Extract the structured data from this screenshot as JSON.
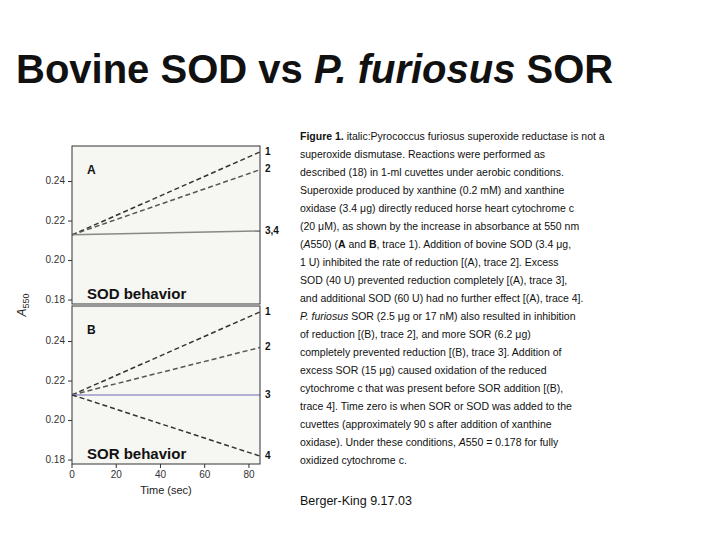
{
  "title": [
    {
      "text": "Bovine SOD vs ",
      "style": "normal"
    },
    {
      "text": "P. furiosus",
      "style": "italic"
    },
    {
      "text": " SOR",
      "style": "normal"
    }
  ],
  "chart_data": [
    {
      "type": "line",
      "x": [
        0,
        85
      ],
      "xlim": [
        0,
        85
      ],
      "ylim": [
        0.178,
        0.258
      ],
      "yticks": [
        0.18,
        {
          "value": 0.2,
          "label": "0.20"
        },
        0.22,
        0.24
      ],
      "tick_labels": "y",
      "grid": false,
      "ylabel": [
        {
          "text": "A",
          "style": "italic"
        },
        {
          "text": "550",
          "style": "sub"
        }
      ],
      "annotations": [
        "A",
        "SOD behavior"
      ],
      "series": [
        {
          "name": "1",
          "color": "#333333",
          "line_style": "dashed",
          "values": [
            0.213,
            0.255
          ]
        },
        {
          "name": "2",
          "color": "#555555",
          "line_style": "dashed",
          "values": [
            0.213,
            0.246
          ]
        },
        {
          "name": "3,4",
          "color": "#888888",
          "line_style": "solid",
          "values": [
            0.213,
            0.215
          ]
        }
      ]
    },
    {
      "type": "line",
      "x": [
        0,
        85
      ],
      "xlim": [
        0,
        85
      ],
      "xticks": [
        0,
        20,
        40,
        60,
        80
      ],
      "xlabel": "Time (sec)",
      "ylim": [
        0.178,
        0.258
      ],
      "yticks": [
        0.18,
        {
          "value": 0.2,
          "label": "0.20"
        },
        0.22,
        0.24
      ],
      "grid": false,
      "annotations": [
        "B",
        "SOR behavior"
      ],
      "series": [
        {
          "name": "1",
          "color": "#333333",
          "line_style": "dashed",
          "values": [
            0.213,
            0.255
          ]
        },
        {
          "name": "2",
          "color": "#555555",
          "line_style": "dashed",
          "values": [
            0.213,
            0.237
          ]
        },
        {
          "name": "3",
          "color": "#9999cc",
          "line_style": "solid",
          "values": [
            0.213,
            0.213
          ]
        },
        {
          "name": "4",
          "color": "#333333",
          "line_style": "dashed",
          "values": [
            0.213,
            0.182
          ]
        }
      ]
    }
  ],
  "caption": [
    [
      {
        "text": "Figure 1.",
        "style": "bold"
      },
      {
        "text": " italic:Pyrococcus furiosus",
        "style": "normal"
      },
      {
        "text": " superoxide reductase is not a",
        "style": "normal"
      }
    ],
    [
      {
        "text": "superoxide dismutase. Reactions were performed as",
        "style": "normal"
      }
    ],
    [
      {
        "text": "described (18) in 1-ml cuvettes under aerobic conditions.",
        "style": "normal"
      }
    ],
    [
      {
        "text": "Superoxide produced by xanthine (0.2 mM) and xanthine",
        "style": "normal"
      }
    ],
    [
      {
        "text": "oxidase (3.4 μg) directly reduced horse heart cytochrome c",
        "style": "normal"
      }
    ],
    [
      {
        "text": "(20 μM), as shown by the increase in absorbance at 550 nm",
        "style": "normal"
      }
    ],
    [
      {
        "text": "(",
        "style": "normal"
      },
      {
        "text": "A",
        "style": "italic"
      },
      {
        "text": "550) (",
        "style": "normal"
      },
      {
        "text": "A",
        "style": "bold"
      },
      {
        "text": " and ",
        "style": "normal"
      },
      {
        "text": "B",
        "style": "bold"
      },
      {
        "text": ", trace 1). Addition of bovine SOD (3.4 μg,",
        "style": "normal"
      }
    ],
    [
      {
        "text": "1 U) inhibited the rate of reduction [(A), trace 2]. Excess",
        "style": "normal"
      }
    ],
    [
      {
        "text": "SOD (40 U) prevented reduction completely [(A), trace 3],",
        "style": "normal"
      }
    ],
    [
      {
        "text": "and additional SOD (60 U) had no further effect [(A), trace 4].",
        "style": "normal"
      }
    ],
    [
      {
        "text": "P. furiosus",
        "style": "italic"
      },
      {
        "text": " SOR (2.5 μg or 17 nM) also resulted in inhibition",
        "style": "normal"
      }
    ],
    [
      {
        "text": "of reduction [(B), trace 2], and more SOR (6.2 μg)",
        "style": "normal"
      }
    ],
    [
      {
        "text": "completely prevented reduction [(B), trace 3]. Addition of",
        "style": "normal"
      }
    ],
    [
      {
        "text": "excess SOR (15 μg) caused oxidation of the reduced",
        "style": "normal"
      }
    ],
    [
      {
        "text": "cytochrome c that was present before SOR addition [(B),",
        "style": "normal"
      }
    ],
    [
      {
        "text": "trace 4]. Time zero is when SOR or SOD was added to the",
        "style": "normal"
      }
    ],
    [
      {
        "text": "cuvettes (approximately 90 s after addition of xanthine",
        "style": "normal"
      }
    ],
    [
      {
        "text": "oxidase). Under these conditions, ",
        "style": "normal"
      },
      {
        "text": "A",
        "style": "italic"
      },
      {
        "text": "550 = 0.178 for fully",
        "style": "normal"
      }
    ],
    [
      {
        "text": "oxidized cytochrome c.",
        "style": "normal"
      }
    ]
  ],
  "footer": "Berger-King 9.17.03"
}
